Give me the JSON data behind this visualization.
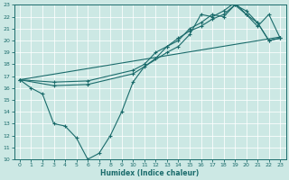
{
  "xlabel": "Humidex (Indice chaleur)",
  "xlim": [
    -0.5,
    23.5
  ],
  "ylim": [
    10,
    23
  ],
  "xticks": [
    0,
    1,
    2,
    3,
    4,
    5,
    6,
    7,
    8,
    9,
    10,
    11,
    12,
    13,
    14,
    15,
    16,
    17,
    18,
    19,
    20,
    21,
    22,
    23
  ],
  "yticks": [
    10,
    11,
    12,
    13,
    14,
    15,
    16,
    17,
    18,
    19,
    20,
    21,
    22,
    23
  ],
  "bg_color": "#cce8e4",
  "line_color": "#1a6b6b",
  "grid_color": "#b0d8d2",
  "series_with_markers": [
    {
      "x": [
        0,
        1,
        2,
        3,
        4,
        5,
        6,
        7,
        8,
        9,
        10,
        11,
        12,
        13,
        14,
        15,
        16,
        17,
        18,
        19,
        20,
        21,
        22,
        23
      ],
      "y": [
        16.7,
        16.0,
        15.5,
        13.0,
        12.8,
        11.8,
        10.0,
        10.5,
        12.0,
        14.0,
        16.5,
        17.8,
        18.5,
        19.5,
        20.0,
        21.0,
        21.5,
        22.2,
        22.0,
        23.0,
        22.2,
        21.2,
        22.2,
        20.2
      ]
    },
    {
      "x": [
        0,
        3,
        6,
        10,
        11,
        12,
        13,
        14,
        15,
        16,
        17,
        18,
        19,
        20,
        21,
        22,
        23
      ],
      "y": [
        16.7,
        16.5,
        16.6,
        17.5,
        18.0,
        19.0,
        19.5,
        20.2,
        20.8,
        21.2,
        21.8,
        22.2,
        23.0,
        22.5,
        21.5,
        20.0,
        20.2
      ]
    },
    {
      "x": [
        0,
        3,
        6,
        10,
        13,
        14,
        15,
        16,
        17,
        18,
        19,
        20,
        21,
        22,
        23
      ],
      "y": [
        16.7,
        16.2,
        16.3,
        17.2,
        19.0,
        19.5,
        20.5,
        22.2,
        22.0,
        22.5,
        23.2,
        22.2,
        21.5,
        20.0,
        20.2
      ]
    }
  ],
  "series_straight": {
    "x": [
      0,
      23
    ],
    "y": [
      16.7,
      20.3
    ]
  }
}
